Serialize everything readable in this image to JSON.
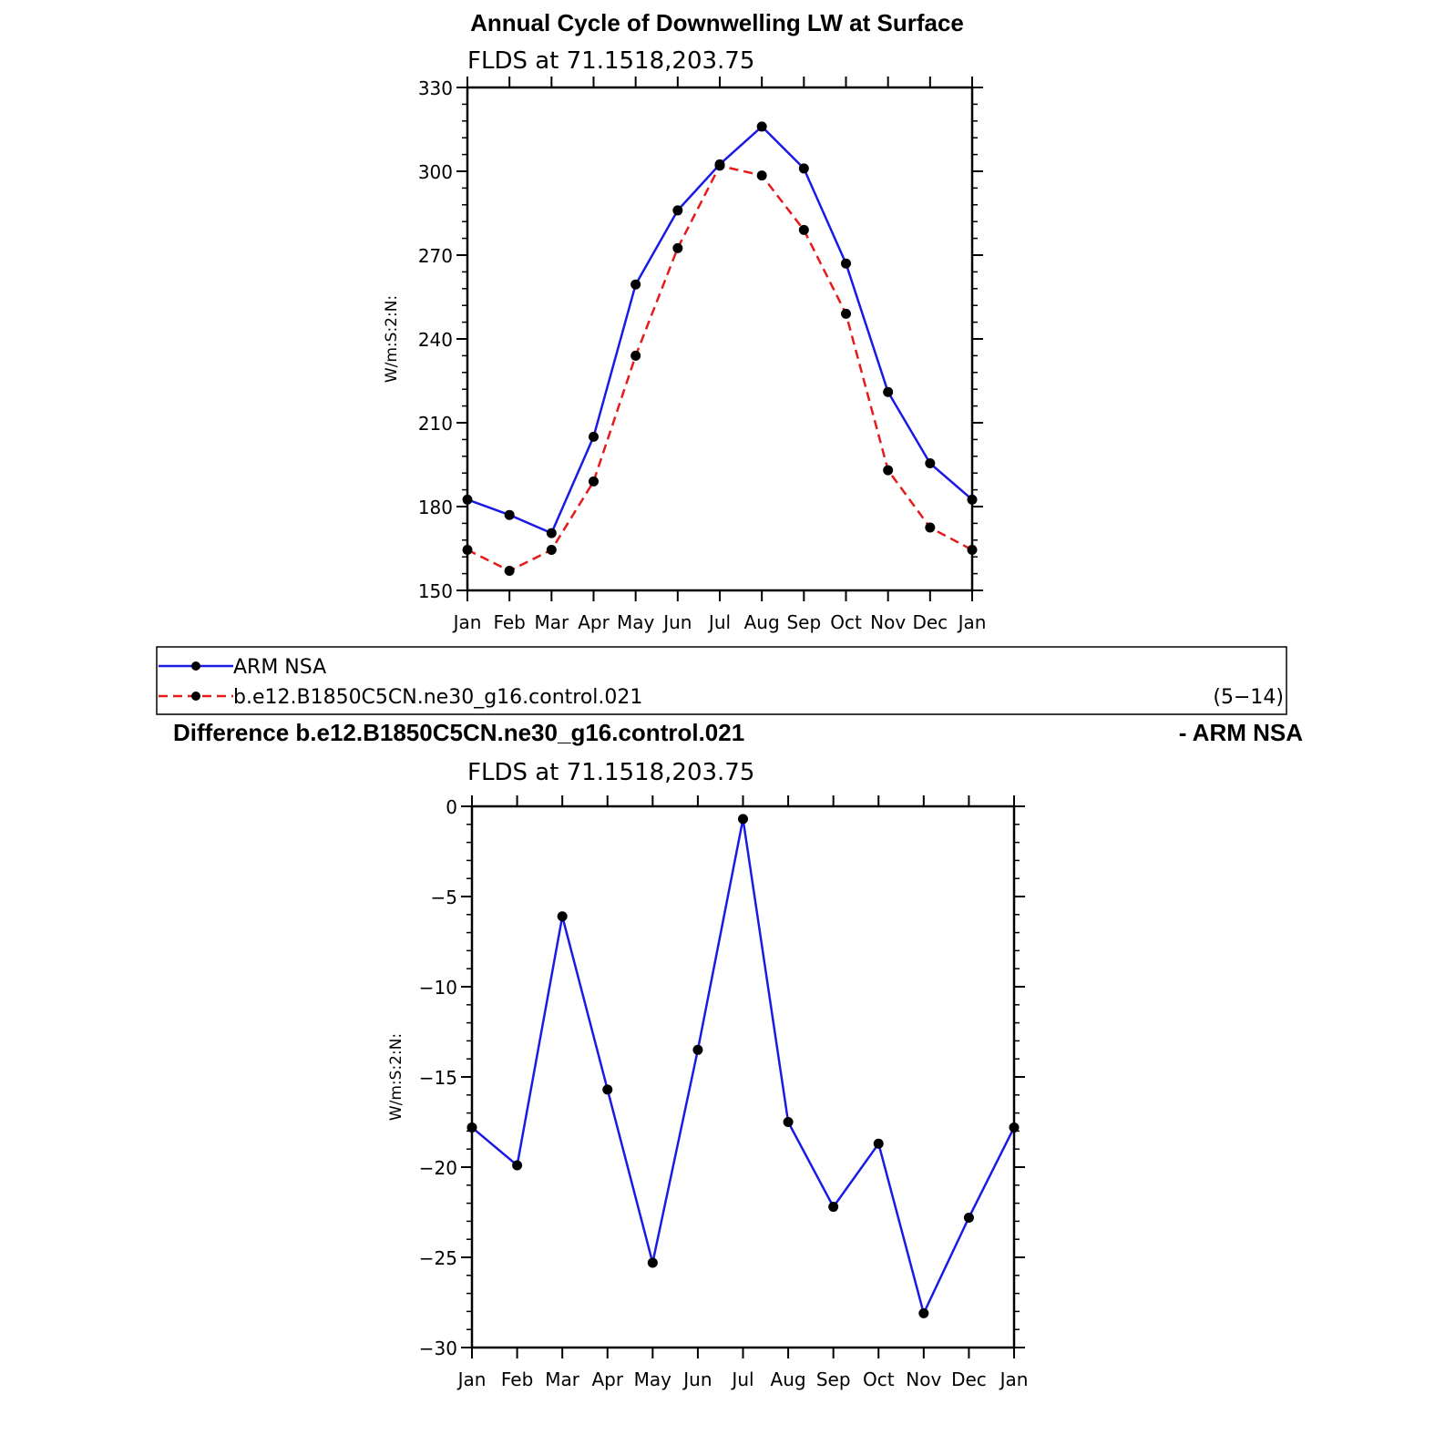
{
  "top_title": "Annual Cycle of Downwelling LW at Surface",
  "diff_title_left": "Difference b.e12.B1850C5CN.ne30_g16.control.021",
  "diff_title_right": "- ARM NSA",
  "legend": {
    "items": [
      "ARM NSA",
      "b.e12.B1850C5CN.ne30_g16.control.021"
    ],
    "note": "(5−14)"
  },
  "colors": {
    "obs": "#1a1ae6",
    "model": "#e61a1a",
    "marker": "#000000",
    "axis": "#000000"
  },
  "chart_data": [
    {
      "type": "line",
      "subtitle": "FLDS at 71.1518,203.75",
      "ylabel": "W/m:S:2:N:",
      "categories": [
        "Jan",
        "Feb",
        "Mar",
        "Apr",
        "May",
        "Jun",
        "Jul",
        "Aug",
        "Sep",
        "Oct",
        "Nov",
        "Dec",
        "Jan"
      ],
      "ylim": [
        150,
        330
      ],
      "yticks": [
        "150",
        "180",
        "210",
        "240",
        "270",
        "300",
        "330"
      ],
      "series": [
        {
          "name": "ARM NSA",
          "color": "#1a1ae6",
          "dash": "solid",
          "values": [
            182.5,
            177,
            170.5,
            205,
            259.5,
            286,
            302.5,
            316,
            301,
            267,
            221,
            195.5,
            182.5
          ]
        },
        {
          "name": "b.e12.B1850C5CN.ne30_g16.control.021",
          "color": "#e61a1a",
          "dash": "dashed",
          "values": [
            164.5,
            157,
            164.5,
            189,
            234,
            272.5,
            302,
            298.5,
            279,
            249,
            193,
            172.5,
            164.5
          ]
        }
      ]
    },
    {
      "type": "line",
      "subtitle": "FLDS at 71.1518,203.75",
      "ylabel": "W/m:S:2:N:",
      "categories": [
        "Jan",
        "Feb",
        "Mar",
        "Apr",
        "May",
        "Jun",
        "Jul",
        "Aug",
        "Sep",
        "Oct",
        "Nov",
        "Dec",
        "Jan"
      ],
      "ylim": [
        -30,
        0
      ],
      "yticks": [
        "−30",
        "−25",
        "−20",
        "−15",
        "−10",
        "−5",
        "0"
      ],
      "series": [
        {
          "color": "#1a1ae6",
          "dash": "solid",
          "values": [
            -17.8,
            -19.9,
            -6.1,
            -15.7,
            -25.3,
            -13.5,
            -0.7,
            -17.5,
            -22.2,
            -18.7,
            -28.1,
            -22.8,
            -17.8
          ]
        }
      ]
    }
  ]
}
